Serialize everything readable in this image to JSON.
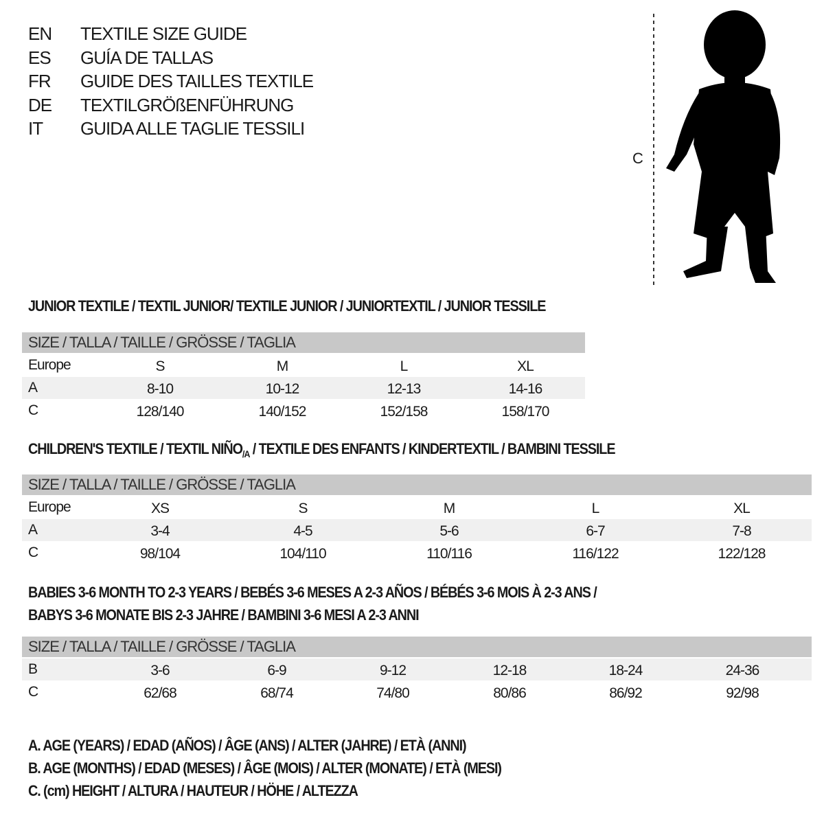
{
  "titles": [
    {
      "code": "EN",
      "text": "TEXTILE SIZE GUIDE"
    },
    {
      "code": "ES",
      "text": "GUÍA DE TALLAS"
    },
    {
      "code": "FR",
      "text": "GUIDE DES TAILLES TEXTILE"
    },
    {
      "code": "DE",
      "text": "TEXTILGRÖßENFÜHRUNG"
    },
    {
      "code": "IT",
      "text": "GUIDA ALLE TAGLIE TESSILI"
    }
  ],
  "figure": {
    "measure_label": "C",
    "icon": "child-silhouette"
  },
  "size_header": "SIZE / TALLA / TAILLE / GRÖSSE / TAGLIA",
  "junior": {
    "title": "JUNIOR TEXTILE / TEXTIL JUNIOR/ TEXTILE JUNIOR / JUNIORTEXTIL / JUNIOR TESSILE",
    "rows": [
      {
        "label": "Europe",
        "values": [
          "S",
          "M",
          "L",
          "XL"
        ]
      },
      {
        "label": "A",
        "values": [
          "8-10",
          "10-12",
          "12-13",
          "14-16"
        ]
      },
      {
        "label": "C",
        "values": [
          "128/140",
          "140/152",
          "152/158",
          "158/170"
        ]
      }
    ]
  },
  "children": {
    "title_pre": "CHILDREN'S TEXTILE / TEXTIL NIÑO",
    "title_sub": "/A",
    "title_post": " / TEXTILE DES ENFANTS / KINDERTEXTIL / BAMBINI TESSILE",
    "rows": [
      {
        "label": "Europe",
        "values": [
          "XS",
          "S",
          "M",
          "L",
          "XL"
        ]
      },
      {
        "label": "A",
        "values": [
          "3-4",
          "4-5",
          "5-6",
          "6-7",
          "7-8"
        ]
      },
      {
        "label": "C",
        "values": [
          "98/104",
          "104/110",
          "110/116",
          "116/122",
          "122/128"
        ]
      }
    ]
  },
  "babies": {
    "title_line1": "BABIES 3-6 MONTH TO 2-3 YEARS / BEBÉS 3-6 MESES A 2-3 AÑOS / BÉBÉS 3-6 MOIS À 2-3 ANS /",
    "title_line2": "BABYS 3-6 MONATE BIS 2-3 JAHRE / BAMBINI 3-6 MESI A 2-3 ANNI",
    "rows": [
      {
        "label": "B",
        "values": [
          "3-6",
          "6-9",
          "9-12",
          "12-18",
          "18-24",
          "24-36"
        ]
      },
      {
        "label": "C",
        "values": [
          "62/68",
          "68/74",
          "74/80",
          "80/86",
          "86/92",
          "92/98"
        ]
      }
    ]
  },
  "legend": [
    "A. AGE (YEARS) / EDAD (AÑOS) / ÂGE (ANS) / ALTER (JAHRE) / ETÀ (ANNI)",
    "B. AGE (MONTHS) / EDAD (MESES) / ÂGE (MOIS) / ALTER (MONATE) / ETÀ (MESI)",
    "C. (cm) HEIGHT / ALTURA / HAUTEUR / HÖHE / ALTEZZA"
  ],
  "colors": {
    "header": "#c8c8c8",
    "band": "#f0f0f0",
    "text": "#1a1a1a"
  }
}
